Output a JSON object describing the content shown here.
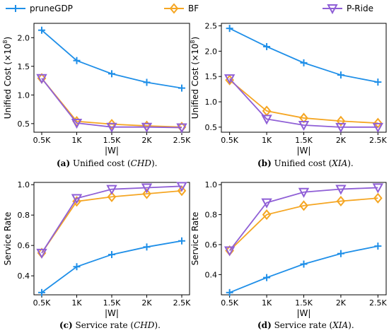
{
  "legend": [
    {
      "name": "pruneGDP",
      "color": "#1f8fe8",
      "marker": "plus"
    },
    {
      "name": "BF",
      "color": "#f5a623",
      "marker": "diamond"
    },
    {
      "name": "P-Ride",
      "color": "#8f5fd6",
      "marker": "triangle-down"
    }
  ],
  "captions": [
    {
      "label": "(a)",
      "text": " Unified cost (",
      "italic": "CHD",
      "end": ")."
    },
    {
      "label": "(b)",
      "text": " Unified cost (",
      "italic": "XIA",
      "end": ")."
    },
    {
      "label": "(c)",
      "text": " Service rate (",
      "italic": "CHD",
      "end": ")."
    },
    {
      "label": "(d)",
      "text": " Service rate (",
      "italic": "XIA",
      "end": ")."
    }
  ],
  "chart_data": [
    {
      "type": "line",
      "xlabel": "|W|",
      "ylabel": "Unified Cost (×10",
      "ylabel_sup": "8",
      "ylabel_end": ")",
      "categories": [
        "0.5K",
        "1K",
        "1.5K",
        "2K",
        "2.5K"
      ],
      "yticks": [
        "0.5",
        "1.0",
        "1.5",
        "2.0"
      ],
      "ytick_values": [
        0.5,
        1.0,
        1.5,
        2.0
      ],
      "ylim": [
        0.35,
        2.25
      ],
      "series": [
        {
          "name": "pruneGDP",
          "values": [
            2.13,
            1.6,
            1.37,
            1.22,
            1.12
          ]
        },
        {
          "name": "BF",
          "values": [
            1.29,
            0.54,
            0.49,
            0.46,
            0.44
          ]
        },
        {
          "name": "P-Ride",
          "values": [
            1.29,
            0.51,
            0.44,
            0.44,
            0.43
          ]
        }
      ]
    },
    {
      "type": "line",
      "xlabel": "|W|",
      "ylabel": "Unified Cost (×10",
      "ylabel_sup": "8",
      "ylabel_end": ")",
      "categories": [
        "0.5K",
        "1K",
        "1.5K",
        "2K",
        "2.5K"
      ],
      "yticks": [
        "0.5",
        "1.0",
        "1.5",
        "2.0",
        "2.5"
      ],
      "ytick_values": [
        0.5,
        1.0,
        1.5,
        2.0,
        2.5
      ],
      "ylim": [
        0.4,
        2.55
      ],
      "series": [
        {
          "name": "pruneGDP",
          "values": [
            2.45,
            2.09,
            1.77,
            1.53,
            1.39
          ]
        },
        {
          "name": "BF",
          "values": [
            1.43,
            0.82,
            0.68,
            0.62,
            0.58
          ]
        },
        {
          "name": "P-Ride",
          "values": [
            1.46,
            0.66,
            0.54,
            0.5,
            0.5
          ]
        }
      ]
    },
    {
      "type": "line",
      "xlabel": "|W|",
      "ylabel": "Service Rate",
      "ylabel_sup": "",
      "ylabel_end": "",
      "categories": [
        "0.5K",
        "1K",
        "1.5K",
        "2K",
        "2.5K"
      ],
      "yticks": [
        "0.4",
        "0.6",
        "0.8",
        "1.0"
      ],
      "ytick_values": [
        0.4,
        0.6,
        0.8,
        1.0
      ],
      "ylim": [
        0.275,
        1.015
      ],
      "series": [
        {
          "name": "pruneGDP",
          "values": [
            0.29,
            0.46,
            0.54,
            0.59,
            0.63
          ]
        },
        {
          "name": "BF",
          "values": [
            0.55,
            0.89,
            0.92,
            0.94,
            0.96
          ]
        },
        {
          "name": "P-Ride",
          "values": [
            0.55,
            0.91,
            0.97,
            0.98,
            0.99
          ]
        }
      ]
    },
    {
      "type": "line",
      "xlabel": "|W|",
      "ylabel": "Service Rate",
      "ylabel_sup": "",
      "ylabel_end": "",
      "categories": [
        "0.5K",
        "1K",
        "1.5K",
        "2K",
        "2.5K"
      ],
      "yticks": [
        "0.4",
        "0.6",
        "0.8",
        "1.0"
      ],
      "ytick_values": [
        0.4,
        0.6,
        0.8,
        1.0
      ],
      "ylim": [
        0.265,
        1.015
      ],
      "series": [
        {
          "name": "pruneGDP",
          "values": [
            0.28,
            0.38,
            0.47,
            0.54,
            0.59
          ]
        },
        {
          "name": "BF",
          "values": [
            0.56,
            0.8,
            0.86,
            0.89,
            0.91
          ]
        },
        {
          "name": "P-Ride",
          "values": [
            0.56,
            0.88,
            0.95,
            0.97,
            0.98
          ]
        }
      ]
    }
  ]
}
